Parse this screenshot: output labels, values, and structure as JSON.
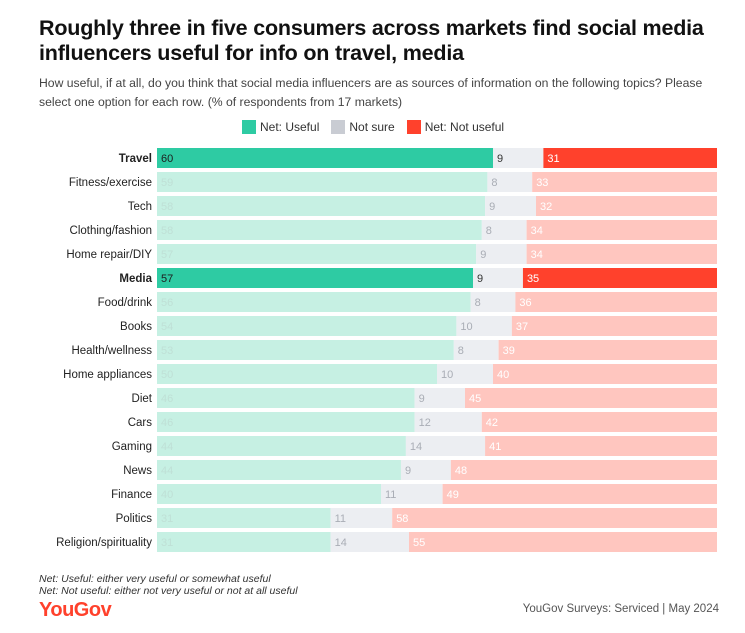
{
  "title": "Roughly three in five consumers across markets find social media influencers useful for info on travel, media",
  "subtitle": "How useful, if at all, do you think that social media influencers are as sources of information on the following topics? Please select one option for each row. (% of respondents from 17 markets)",
  "legend": [
    {
      "label": "Net: Useful",
      "color": "#2ecba3"
    },
    {
      "label": "Not sure",
      "color": "#c9ccd3"
    },
    {
      "label": "Net: Not useful",
      "color": "#ff412c"
    }
  ],
  "chart_data": {
    "type": "bar",
    "orientation": "horizontal",
    "stacked": true,
    "categories": [
      "Travel",
      "Fitness/exercise",
      "Tech",
      "Clothing/fashion",
      "Home repair/DIY",
      "Media",
      "Food/drink",
      "Books",
      "Health/wellness",
      "Home appliances",
      "Diet",
      "Cars",
      "Gaming",
      "News",
      "Finance",
      "Politics",
      "Religion/spirituality"
    ],
    "highlighted": [
      "Travel",
      "Media"
    ],
    "series": [
      {
        "name": "Net: Useful",
        "values": [
          60,
          59,
          58,
          58,
          57,
          57,
          56,
          54,
          53,
          50,
          46,
          46,
          44,
          44,
          40,
          31,
          31
        ]
      },
      {
        "name": "Not sure",
        "values": [
          9,
          8,
          9,
          8,
          9,
          9,
          8,
          10,
          8,
          10,
          9,
          12,
          14,
          9,
          11,
          11,
          14
        ]
      },
      {
        "name": "Net: Not useful",
        "values": [
          31,
          33,
          32,
          34,
          34,
          35,
          36,
          37,
          39,
          40,
          45,
          42,
          41,
          48,
          49,
          58,
          55
        ]
      }
    ],
    "colors": {
      "useful": "#2ecba3",
      "useful_light": "#c6f0e3",
      "not_sure": "#c9ccd3",
      "not_sure_light": "#eceef2",
      "not_useful": "#ff412c",
      "not_useful_light": "#ffc6bf"
    }
  },
  "footnotes": [
    "Net: Useful: either very useful or somewhat useful",
    "Net: Not useful: either not very useful or not at all useful"
  ],
  "logo": "YouGov",
  "source": "YouGov Surveys: Serviced | May 2024"
}
